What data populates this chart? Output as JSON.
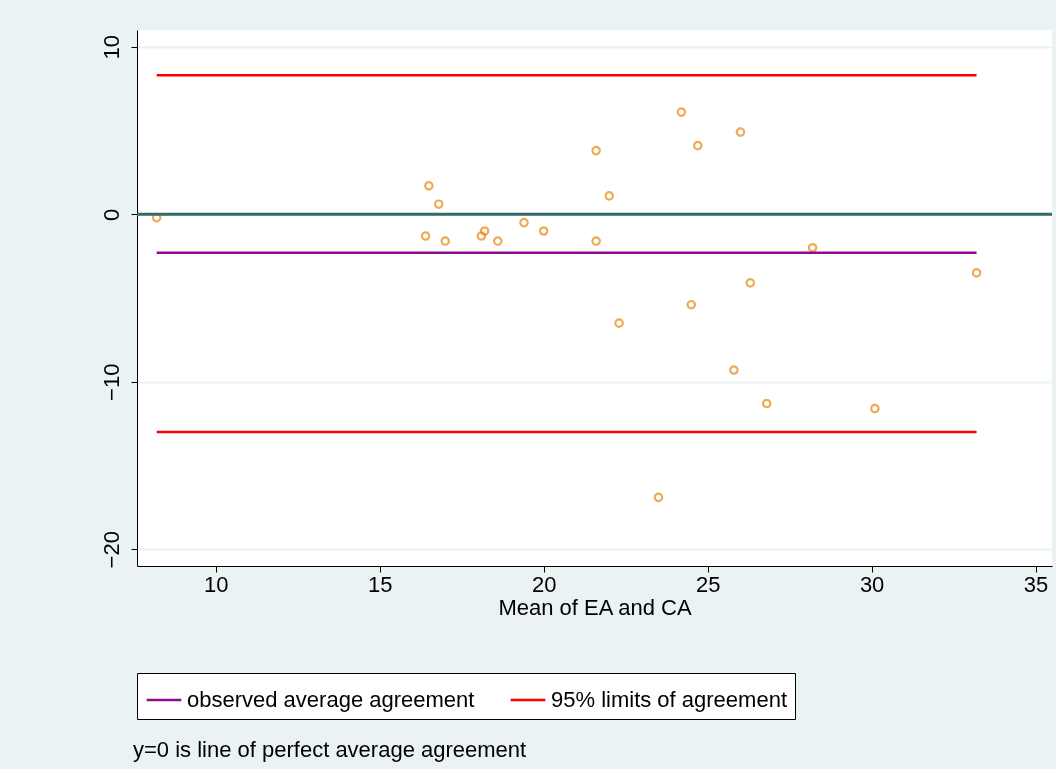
{
  "chart_data": {
    "type": "scatter",
    "xlabel": "Mean of EA and CA",
    "xlim": [
      7.6,
      35.5
    ],
    "xticks": [
      10,
      15,
      20,
      25,
      30,
      35
    ],
    "ylim": [
      -21,
      11
    ],
    "yticks": [
      -20,
      -10,
      0,
      10
    ],
    "grid": "y",
    "legend": "bottom",
    "series": [
      {
        "marker": "circle",
        "color": "#e8870e",
        "x": [
          8.2,
          16.5,
          16.8,
          16.4,
          17.0,
          18.1,
          18.2,
          18.6,
          19.4,
          20.0,
          21.6,
          21.6,
          22.0,
          22.3,
          23.5,
          24.2,
          24.5,
          24.7,
          26.0,
          25.8,
          26.3,
          26.8,
          28.2,
          30.1,
          33.2
        ],
        "values": [
          -0.2,
          1.7,
          0.6,
          -1.3,
          -1.6,
          -1.3,
          -1.0,
          -1.6,
          -0.5,
          -1.0,
          -1.6,
          3.8,
          1.1,
          -6.5,
          -16.9,
          6.1,
          -5.4,
          4.1,
          4.9,
          -9.3,
          -4.1,
          -11.3,
          -2.0,
          -11.6,
          -3.5
        ]
      },
      {
        "type": "line",
        "name": "observed average agreement",
        "color": "#8b0f8b",
        "x": [
          8.2,
          33.2
        ],
        "values": [
          -2.3,
          -2.3
        ]
      },
      {
        "type": "line",
        "name": "95% limits of agreement",
        "color": "#ff0000",
        "x": [
          8.2,
          33.2
        ],
        "values": [
          8.3,
          8.3
        ]
      },
      {
        "type": "line",
        "color": "#ff0000",
        "x": [
          8.2,
          33.2
        ],
        "values": [
          -13.0,
          -13.0
        ]
      }
    ],
    "ref_lines": [
      {
        "axis": "y",
        "value": 0,
        "label": null,
        "color": "#2f6b68"
      }
    ],
    "annotations": [
      "y=0 is line of perfect average agreement"
    ]
  }
}
